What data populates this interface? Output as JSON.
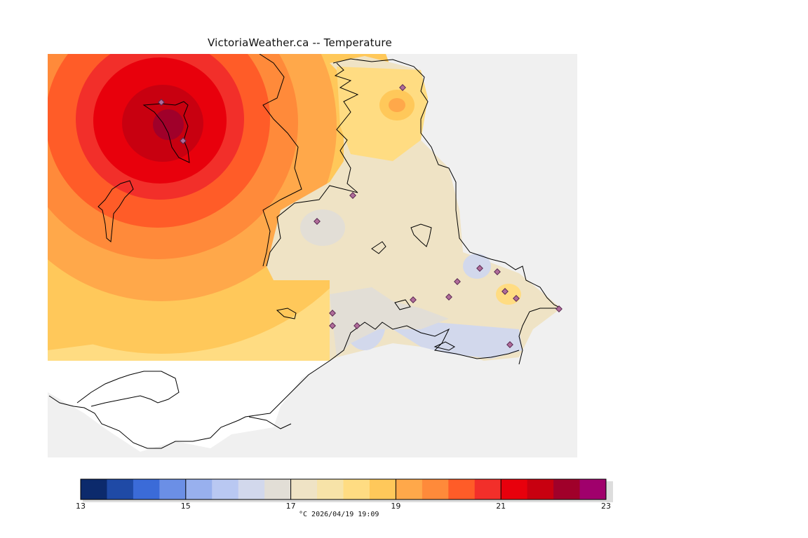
{
  "title": "VictoriaWeather.ca -- Temperature",
  "timestamp": "°C  2026/04/19 19:09",
  "colors": {
    "land_outside": "#f0f0f0",
    "water_unmapped": "#ffffff",
    "coast": "#000000",
    "station_fill": "#b06c9a",
    "station_stroke": "#5a2a52"
  },
  "legend": {
    "min": 13,
    "max": 23,
    "step": 0.5,
    "tick_labels": [
      "13",
      "15",
      "17",
      "19",
      "21",
      "23"
    ],
    "bins": [
      "#0c2a6c",
      "#1f4aa6",
      "#3b6bd8",
      "#6b8fe6",
      "#98b0ee",
      "#b9c8f2",
      "#d2d8ec",
      "#e2ded6",
      "#efe3c5",
      "#f7e3a8",
      "#ffdc82",
      "#ffc85a",
      "#ffa84a",
      "#ff8a3a",
      "#ff5c28",
      "#f22f2a",
      "#e8000c",
      "#c80010",
      "#a0002a",
      "#a0006c"
    ]
  },
  "stations_count": 17
}
